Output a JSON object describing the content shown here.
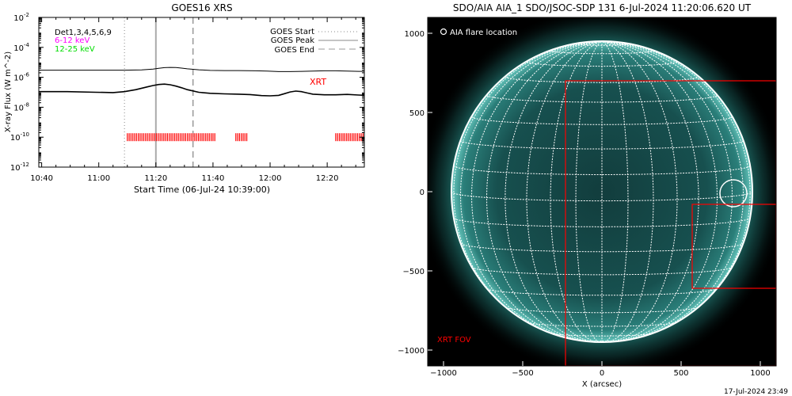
{
  "left_panel": {
    "title": "GOES16 XRS",
    "xlabel": "Start Time (06-Jul-24 10:39:00)",
    "ylabel": "X-ray Flux (W m^-2)",
    "det_label": "Det1,3,4,5,6,9",
    "band_labels": [
      {
        "text": "6-12 keV",
        "color": "#ff00ff"
      },
      {
        "text": "12-25 keV",
        "color": "#00dd00"
      }
    ],
    "legend": [
      {
        "text": "GOES Start",
        "style": "dotted"
      },
      {
        "text": "GOES Peak",
        "style": "solid"
      },
      {
        "text": "GOES End",
        "style": "dashed"
      }
    ],
    "xrt_label": "XRT",
    "xrt_color": "#ff0000",
    "y_tick_labels": [
      {
        "base": "10",
        "exp": "-2"
      },
      {
        "base": "10",
        "exp": "-4"
      },
      {
        "base": "10",
        "exp": "-6"
      },
      {
        "base": "10",
        "exp": "-8"
      },
      {
        "base": "10",
        "exp": "-10"
      },
      {
        "base": "10",
        "exp": "-12"
      }
    ],
    "x_tick_labels": [
      "10:40",
      "11:00",
      "11:20",
      "11:40",
      "12:00",
      "12:20"
    ]
  },
  "right_panel": {
    "title": "SDO/AIA AIA_1 SDO/JSOC-SDP 131  6-Jul-2024 11:20:06.620 UT",
    "flare_legend": "AIA flare location",
    "fov_label": "XRT FOV",
    "fov_color": "#ff0000",
    "xlabel": "X (arcsec)",
    "x_tick_labels": [
      "−1000",
      "−500",
      "0",
      "500",
      "1000"
    ],
    "y_tick_labels": [
      "1000",
      "500",
      "0",
      "−500",
      "−1000"
    ]
  },
  "footer_timestamp": "17-Jul-2024 23:49",
  "chart_data": [
    {
      "type": "line",
      "title": "GOES16 XRS",
      "xlabel": "Start Time (06-Jul-24 10:39:00)",
      "ylabel": "X-ray Flux (W m^-2)",
      "x_unit": "minutes after 10:39:00",
      "xlim": [
        0,
        114
      ],
      "ylim": [
        1e-12,
        0.01
      ],
      "yscale": "log",
      "grid": false,
      "legend_position": "top-right",
      "series": [
        {
          "name": "12-25 keV",
          "x": [
            0,
            10,
            20,
            30,
            36,
            40,
            42,
            44,
            46,
            48,
            50,
            52,
            56,
            60,
            65,
            70,
            76,
            80,
            84,
            88,
            92,
            96,
            100,
            104,
            108,
            112,
            114
          ],
          "y": [
            3e-06,
            3e-06,
            3e-06,
            3e-06,
            3.1e-06,
            3.5e-06,
            4e-06,
            4.4e-06,
            4.6e-06,
            4.5e-06,
            4.1e-06,
            3.7e-06,
            3.2e-06,
            2.9e-06,
            2.8e-06,
            2.8e-06,
            2.7e-06,
            2.6e-06,
            2.4e-06,
            2.4e-06,
            2.5e-06,
            2.6e-06,
            2.7e-06,
            2.7e-06,
            2.6e-06,
            2.5e-06,
            2.5e-06
          ]
        },
        {
          "name": "6-12 keV",
          "x": [
            0,
            10,
            20,
            26,
            30,
            34,
            38,
            40,
            42,
            44,
            46,
            48,
            50,
            52,
            56,
            60,
            65,
            70,
            74,
            78,
            81,
            84,
            86,
            88,
            90,
            92,
            94,
            96,
            100,
            104,
            108,
            112,
            114
          ],
          "y": [
            1.1e-07,
            1.1e-07,
            1e-07,
            9.5e-08,
            1.1e-07,
            1.5e-07,
            2.3e-07,
            2.8e-07,
            3.3e-07,
            3.5e-07,
            3.2e-07,
            2.6e-07,
            2e-07,
            1.5e-07,
            1e-07,
            8.5e-08,
            7.8e-08,
            7.5e-08,
            7e-08,
            6e-08,
            5.8e-08,
            6.2e-08,
            8e-08,
            1.05e-07,
            1.2e-07,
            1.1e-07,
            9e-08,
            7.5e-08,
            6.8e-08,
            6.8e-08,
            7.2e-08,
            6.5e-08,
            6.3e-08
          ]
        }
      ],
      "vertical_markers": [
        {
          "name": "GOES Start",
          "x": 30,
          "style": "dotted"
        },
        {
          "name": "GOES Peak",
          "x": 41,
          "style": "solid"
        },
        {
          "name": "GOES End",
          "x": 54,
          "style": "dashed"
        }
      ],
      "xrt_coverage": {
        "y": 1e-10,
        "intervals": [
          [
            31,
            62
          ],
          [
            69,
            73
          ],
          [
            104,
            114
          ]
        ]
      }
    },
    {
      "type": "scatter",
      "title": "SDO/AIA AIA_1 SDO/JSOC-SDP 131  6-Jul-2024 11:20:06.620 UT",
      "xlabel": "X (arcsec)",
      "ylabel": "",
      "xlim": [
        -1100,
        1100
      ],
      "ylim": [
        -1100,
        1100
      ],
      "grid": false,
      "solar_radius_arcsec": 950,
      "flare_location": {
        "x": 830,
        "y": -10,
        "radius": 85
      },
      "xrt_fov_rectangles": [
        {
          "x0": -230,
          "y0": -1100,
          "x1": 1100,
          "y1": 700
        },
        {
          "x0": 570,
          "y0": -610,
          "x1": 1100,
          "y1": -80
        }
      ]
    }
  ]
}
